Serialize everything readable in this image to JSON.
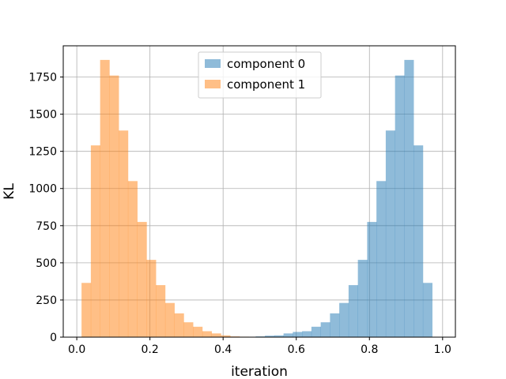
{
  "chart_data": {
    "type": "bar",
    "title": "",
    "xlabel": "iteration",
    "ylabel": "KL",
    "xlim": [
      -0.037,
      1.035
    ],
    "ylim": [
      0,
      1960
    ],
    "xticks": [
      0.0,
      0.2,
      0.4,
      0.6,
      0.8,
      1.0
    ],
    "xtick_labels": [
      "0.0",
      "0.2",
      "0.4",
      "0.6",
      "0.8",
      "1.0"
    ],
    "yticks": [
      0,
      250,
      500,
      750,
      1000,
      1250,
      1500,
      1750
    ],
    "ytick_labels": [
      "0",
      "250",
      "500",
      "750",
      "1000",
      "1250",
      "1500",
      "1750"
    ],
    "grid": true,
    "legend_position": "top-center",
    "bin_width": 0.0254,
    "series": [
      {
        "name": "component 0",
        "color": "#1f77b4",
        "opacity": 0.5,
        "bin_starts": [
          0.489,
          0.5144,
          0.5398,
          0.5652,
          0.5906,
          0.616,
          0.6414,
          0.6668,
          0.6922,
          0.7176,
          0.743,
          0.7684,
          0.7938,
          0.8192,
          0.8446,
          0.87,
          0.8954,
          0.9208,
          0.9462,
          0.9716
        ],
        "values": [
          5,
          10,
          12,
          25,
          35,
          40,
          70,
          100,
          160,
          230,
          350,
          520,
          775,
          1050,
          1390,
          1760,
          1865,
          1290,
          365,
          0
        ]
      },
      {
        "name": "component 1",
        "color": "#ff7f0e",
        "opacity": 0.5,
        "bin_starts": [
          0.013,
          0.0384,
          0.0638,
          0.0892,
          0.1146,
          0.14,
          0.1654,
          0.1908,
          0.2162,
          0.2416,
          0.267,
          0.2924,
          0.3178,
          0.3432,
          0.3686,
          0.394,
          0.4194,
          0.4448,
          0.4702,
          0.4956
        ],
        "values": [
          365,
          1290,
          1865,
          1760,
          1390,
          1050,
          775,
          520,
          350,
          230,
          160,
          100,
          70,
          40,
          25,
          12,
          5,
          3,
          2,
          1
        ]
      }
    ]
  }
}
